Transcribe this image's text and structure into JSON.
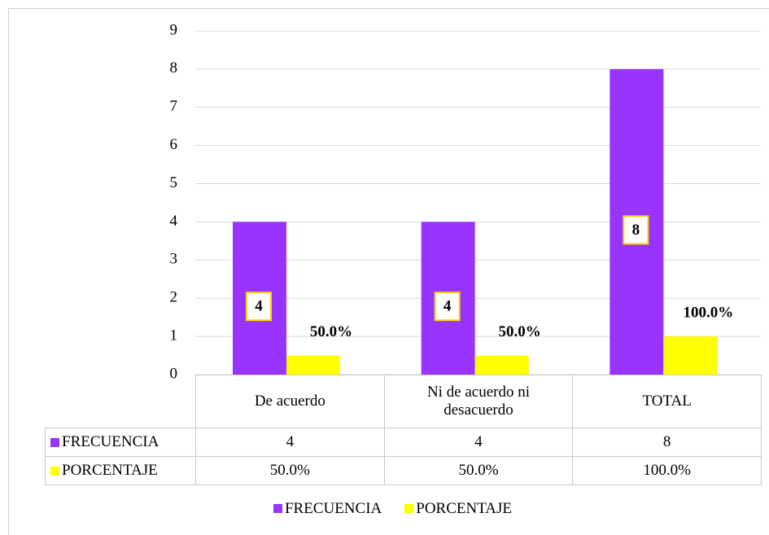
{
  "chart_data": {
    "type": "bar",
    "categories": [
      "De acuerdo",
      "Ni de acuerdo ni desacuerdo",
      "TOTAL"
    ],
    "series": [
      {
        "name": "FRECUENCIA",
        "color": "#9933ff",
        "values": [
          4,
          4,
          8
        ]
      },
      {
        "name": "PORCENTAJE",
        "color": "#ffff00",
        "values": [
          0.5,
          0.5,
          1
        ],
        "value_labels": [
          "50.0%",
          "50.0%",
          "100.0%"
        ]
      }
    ],
    "ylim": [
      0,
      9
    ],
    "yticks": [
      0,
      1,
      2,
      3,
      4,
      5,
      6,
      7,
      8,
      9
    ],
    "grid": true,
    "legend": "bottom",
    "data_table": true
  }
}
